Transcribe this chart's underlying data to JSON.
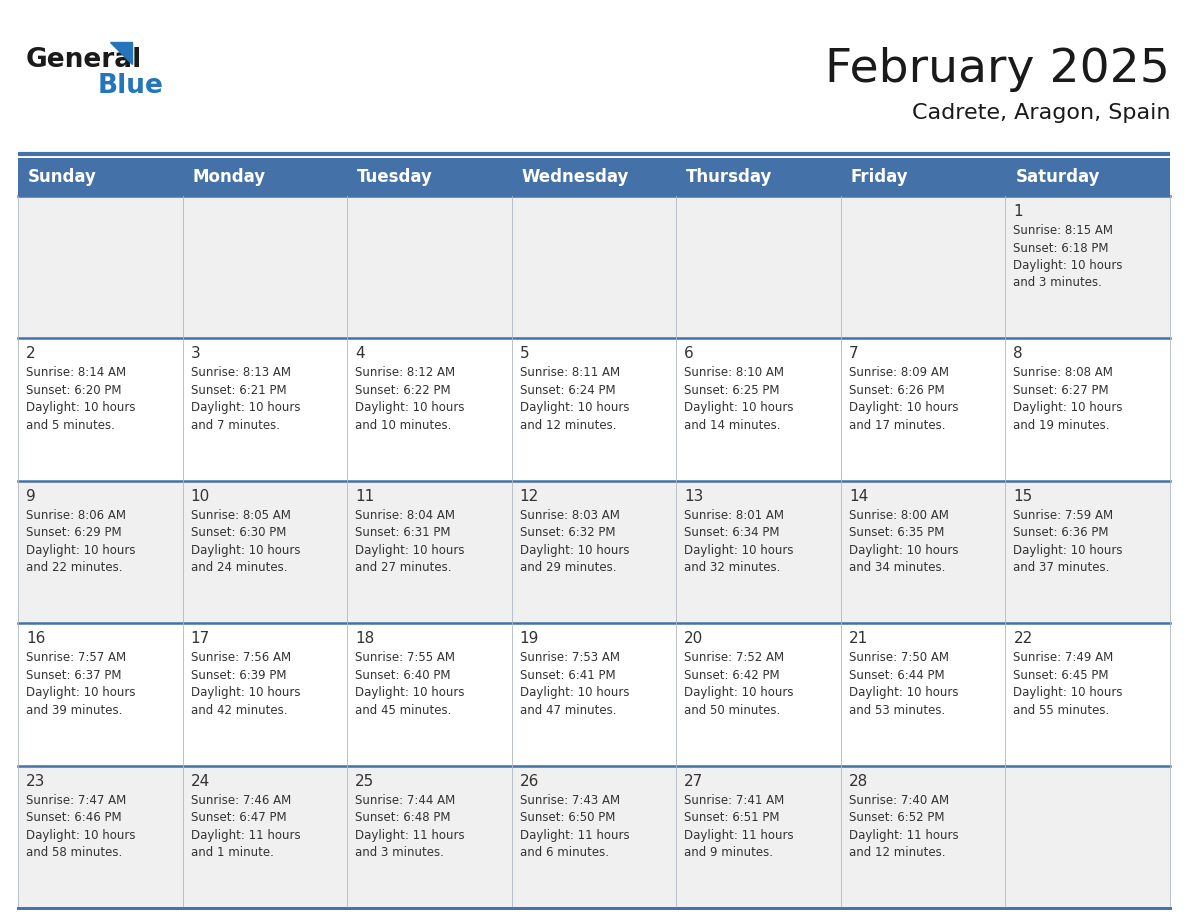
{
  "title": "February 2025",
  "subtitle": "Cadrete, Aragon, Spain",
  "header_bg_color": "#4472A8",
  "header_text_color": "#FFFFFF",
  "cell_bg_color_odd": "#F0F0F0",
  "cell_bg_color_even": "#FFFFFF",
  "border_color": "#4472A8",
  "day_number_color": "#333333",
  "cell_text_color": "#333333",
  "days_of_week": [
    "Sunday",
    "Monday",
    "Tuesday",
    "Wednesday",
    "Thursday",
    "Friday",
    "Saturday"
  ],
  "calendar_data": [
    [
      null,
      null,
      null,
      null,
      null,
      null,
      {
        "day": 1,
        "sunrise": "8:15 AM",
        "sunset": "6:18 PM",
        "daylight_line1": "Daylight: 10 hours",
        "daylight_line2": "and 3 minutes."
      }
    ],
    [
      {
        "day": 2,
        "sunrise": "8:14 AM",
        "sunset": "6:20 PM",
        "daylight_line1": "Daylight: 10 hours",
        "daylight_line2": "and 5 minutes."
      },
      {
        "day": 3,
        "sunrise": "8:13 AM",
        "sunset": "6:21 PM",
        "daylight_line1": "Daylight: 10 hours",
        "daylight_line2": "and 7 minutes."
      },
      {
        "day": 4,
        "sunrise": "8:12 AM",
        "sunset": "6:22 PM",
        "daylight_line1": "Daylight: 10 hours",
        "daylight_line2": "and 10 minutes."
      },
      {
        "day": 5,
        "sunrise": "8:11 AM",
        "sunset": "6:24 PM",
        "daylight_line1": "Daylight: 10 hours",
        "daylight_line2": "and 12 minutes."
      },
      {
        "day": 6,
        "sunrise": "8:10 AM",
        "sunset": "6:25 PM",
        "daylight_line1": "Daylight: 10 hours",
        "daylight_line2": "and 14 minutes."
      },
      {
        "day": 7,
        "sunrise": "8:09 AM",
        "sunset": "6:26 PM",
        "daylight_line1": "Daylight: 10 hours",
        "daylight_line2": "and 17 minutes."
      },
      {
        "day": 8,
        "sunrise": "8:08 AM",
        "sunset": "6:27 PM",
        "daylight_line1": "Daylight: 10 hours",
        "daylight_line2": "and 19 minutes."
      }
    ],
    [
      {
        "day": 9,
        "sunrise": "8:06 AM",
        "sunset": "6:29 PM",
        "daylight_line1": "Daylight: 10 hours",
        "daylight_line2": "and 22 minutes."
      },
      {
        "day": 10,
        "sunrise": "8:05 AM",
        "sunset": "6:30 PM",
        "daylight_line1": "Daylight: 10 hours",
        "daylight_line2": "and 24 minutes."
      },
      {
        "day": 11,
        "sunrise": "8:04 AM",
        "sunset": "6:31 PM",
        "daylight_line1": "Daylight: 10 hours",
        "daylight_line2": "and 27 minutes."
      },
      {
        "day": 12,
        "sunrise": "8:03 AM",
        "sunset": "6:32 PM",
        "daylight_line1": "Daylight: 10 hours",
        "daylight_line2": "and 29 minutes."
      },
      {
        "day": 13,
        "sunrise": "8:01 AM",
        "sunset": "6:34 PM",
        "daylight_line1": "Daylight: 10 hours",
        "daylight_line2": "and 32 minutes."
      },
      {
        "day": 14,
        "sunrise": "8:00 AM",
        "sunset": "6:35 PM",
        "daylight_line1": "Daylight: 10 hours",
        "daylight_line2": "and 34 minutes."
      },
      {
        "day": 15,
        "sunrise": "7:59 AM",
        "sunset": "6:36 PM",
        "daylight_line1": "Daylight: 10 hours",
        "daylight_line2": "and 37 minutes."
      }
    ],
    [
      {
        "day": 16,
        "sunrise": "7:57 AM",
        "sunset": "6:37 PM",
        "daylight_line1": "Daylight: 10 hours",
        "daylight_line2": "and 39 minutes."
      },
      {
        "day": 17,
        "sunrise": "7:56 AM",
        "sunset": "6:39 PM",
        "daylight_line1": "Daylight: 10 hours",
        "daylight_line2": "and 42 minutes."
      },
      {
        "day": 18,
        "sunrise": "7:55 AM",
        "sunset": "6:40 PM",
        "daylight_line1": "Daylight: 10 hours",
        "daylight_line2": "and 45 minutes."
      },
      {
        "day": 19,
        "sunrise": "7:53 AM",
        "sunset": "6:41 PM",
        "daylight_line1": "Daylight: 10 hours",
        "daylight_line2": "and 47 minutes."
      },
      {
        "day": 20,
        "sunrise": "7:52 AM",
        "sunset": "6:42 PM",
        "daylight_line1": "Daylight: 10 hours",
        "daylight_line2": "and 50 minutes."
      },
      {
        "day": 21,
        "sunrise": "7:50 AM",
        "sunset": "6:44 PM",
        "daylight_line1": "Daylight: 10 hours",
        "daylight_line2": "and 53 minutes."
      },
      {
        "day": 22,
        "sunrise": "7:49 AM",
        "sunset": "6:45 PM",
        "daylight_line1": "Daylight: 10 hours",
        "daylight_line2": "and 55 minutes."
      }
    ],
    [
      {
        "day": 23,
        "sunrise": "7:47 AM",
        "sunset": "6:46 PM",
        "daylight_line1": "Daylight: 10 hours",
        "daylight_line2": "and 58 minutes."
      },
      {
        "day": 24,
        "sunrise": "7:46 AM",
        "sunset": "6:47 PM",
        "daylight_line1": "Daylight: 11 hours",
        "daylight_line2": "and 1 minute."
      },
      {
        "day": 25,
        "sunrise": "7:44 AM",
        "sunset": "6:48 PM",
        "daylight_line1": "Daylight: 11 hours",
        "daylight_line2": "and 3 minutes."
      },
      {
        "day": 26,
        "sunrise": "7:43 AM",
        "sunset": "6:50 PM",
        "daylight_line1": "Daylight: 11 hours",
        "daylight_line2": "and 6 minutes."
      },
      {
        "day": 27,
        "sunrise": "7:41 AM",
        "sunset": "6:51 PM",
        "daylight_line1": "Daylight: 11 hours",
        "daylight_line2": "and 9 minutes."
      },
      {
        "day": 28,
        "sunrise": "7:40 AM",
        "sunset": "6:52 PM",
        "daylight_line1": "Daylight: 11 hours",
        "daylight_line2": "and 12 minutes."
      },
      null
    ]
  ],
  "logo_text_general": "General",
  "logo_text_blue": "Blue",
  "logo_color_general": "#1a1a1a",
  "logo_color_blue": "#2475BB",
  "logo_triangle_color": "#2475BB"
}
